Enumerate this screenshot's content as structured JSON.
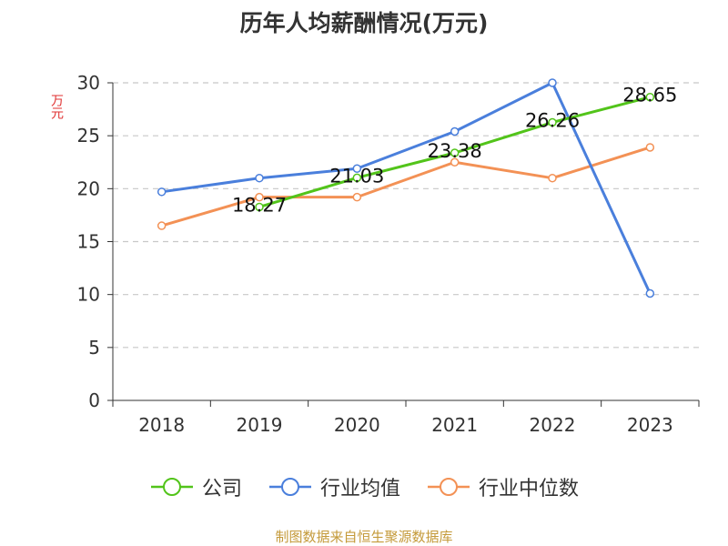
{
  "chart_data": {
    "type": "line",
    "title": "历年人均薪酬情况(万元)",
    "ylabel": "万元",
    "xlabel": "",
    "categories": [
      "2018",
      "2019",
      "2020",
      "2021",
      "2022",
      "2023"
    ],
    "ylim": [
      0,
      30
    ],
    "yticks": [
      0,
      5,
      10,
      15,
      20,
      25,
      30
    ],
    "grid": true,
    "legend_position": "bottom",
    "series": [
      {
        "name": "公司",
        "color": "#52c41a",
        "values": [
          null,
          18.27,
          21.03,
          23.38,
          26.26,
          28.65
        ],
        "labels": [
          "",
          "18.27",
          "21.03",
          "23.38",
          "26.26",
          "28.65"
        ]
      },
      {
        "name": "行业均值",
        "color": "#4a7fdc",
        "values": [
          19.7,
          21.0,
          21.9,
          25.4,
          30.0,
          10.1
        ],
        "labels": []
      },
      {
        "name": "行业中位数",
        "color": "#f39155",
        "values": [
          16.5,
          19.2,
          19.2,
          22.5,
          21.0,
          23.9
        ],
        "labels": []
      }
    ]
  },
  "source": "制图数据来自恒生聚源数据库"
}
